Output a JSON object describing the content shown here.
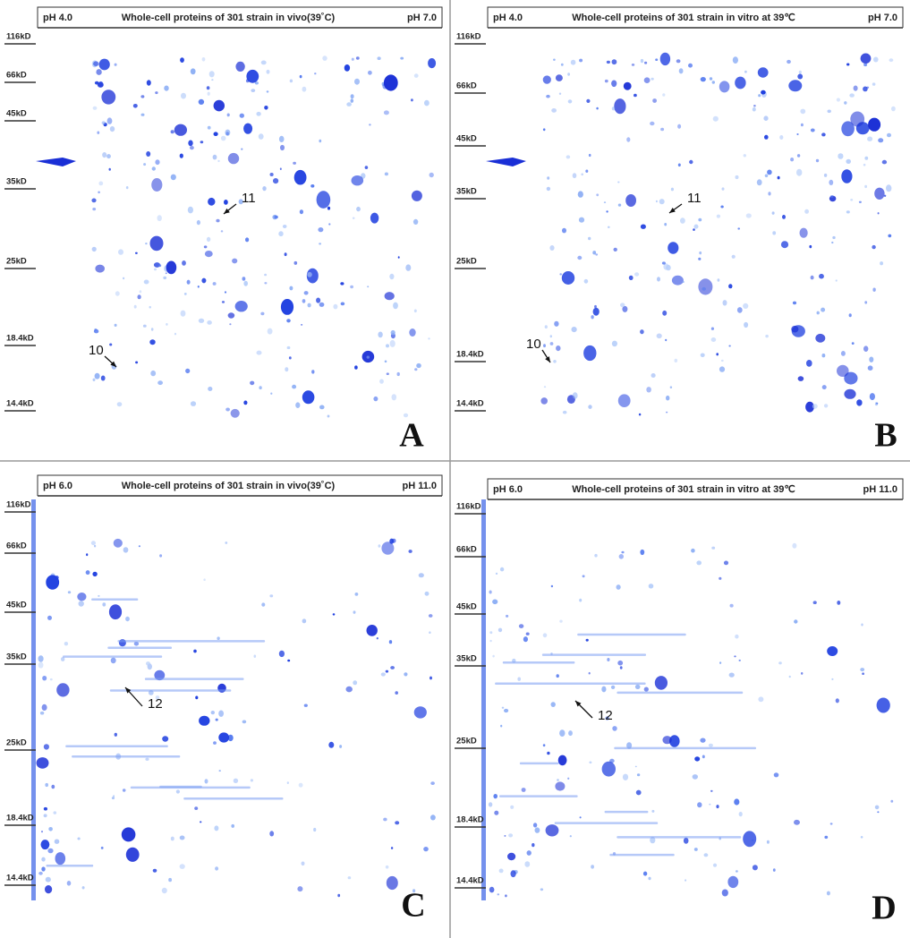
{
  "panels": [
    {
      "letter": "A",
      "ph_left": "pH 4.0",
      "title": "Whole-cell proteins of 301 strain in  vivo(39˚C)",
      "ph_right": "pH 7.0",
      "mw_markers": [
        "116kD",
        "66kD",
        "45kD",
        "35kD",
        "25kD",
        "18.4kD",
        "14.4kD"
      ],
      "annotations": [
        "11",
        "10"
      ]
    },
    {
      "letter": "B",
      "ph_left": "pH 4.0",
      "title": "Whole-cell proteins of 301 strain in  vitro at 39℃",
      "ph_right": "pH 7.0",
      "mw_markers": [
        "116kD",
        "66kD",
        "45kD",
        "35kD",
        "25kD",
        "18.4kD",
        "14.4kD"
      ],
      "annotations": [
        "11",
        "10"
      ]
    },
    {
      "letter": "C",
      "ph_left": "pH 6.0",
      "title": "Whole-cell proteins of 301 strain in  vivo(39˚C)",
      "ph_right": "pH 11.0",
      "mw_markers": [
        "116kD",
        "66kD",
        "45kD",
        "35kD",
        "25kD",
        "18.4kD",
        "14.4kD"
      ],
      "annotations": [
        "12"
      ]
    },
    {
      "letter": "D",
      "ph_left": "pH 6.0",
      "title": "Whole-cell proteins of 301 strain in  vitro at 39℃",
      "ph_right": "pH 11.0",
      "mw_markers": [
        "116kD",
        "66kD",
        "45kD",
        "35kD",
        "25kD",
        "18.4kD",
        "14.4kD"
      ],
      "annotations": [
        "12"
      ]
    }
  ]
}
